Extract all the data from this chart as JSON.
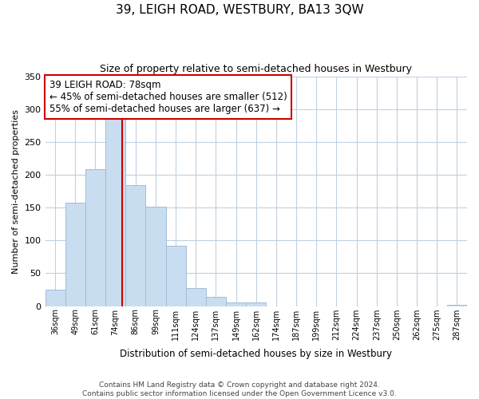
{
  "title": "39, LEIGH ROAD, WESTBURY, BA13 3QW",
  "subtitle": "Size of property relative to semi-detached houses in Westbury",
  "bar_values": [
    25,
    157,
    209,
    287,
    184,
    152,
    92,
    28,
    14,
    5,
    5,
    0,
    0,
    0,
    0,
    0,
    0,
    0,
    0,
    0,
    2
  ],
  "bin_labels": [
    "36sqm",
    "49sqm",
    "61sqm",
    "74sqm",
    "86sqm",
    "99sqm",
    "111sqm",
    "124sqm",
    "137sqm",
    "149sqm",
    "162sqm",
    "174sqm",
    "187sqm",
    "199sqm",
    "212sqm",
    "224sqm",
    "237sqm",
    "250sqm",
    "262sqm",
    "275sqm",
    "287sqm"
  ],
  "bar_color": "#c9ddf0",
  "bar_edge_color": "#a0bcd8",
  "ref_line_value": 3.7,
  "ref_line_color": "#cc0000",
  "annotation_title": "39 LEIGH ROAD: 78sqm",
  "annotation_line2": "← 45% of semi-detached houses are smaller (512)",
  "annotation_line3": "55% of semi-detached houses are larger (637) →",
  "annotation_fontsize": 8.5,
  "ylabel": "Number of semi-detached properties",
  "xlabel": "Distribution of semi-detached houses by size in Westbury",
  "ylim": [
    0,
    350
  ],
  "yticks": [
    0,
    50,
    100,
    150,
    200,
    250,
    300,
    350
  ],
  "footer_line1": "Contains HM Land Registry data © Crown copyright and database right 2024.",
  "footer_line2": "Contains public sector information licensed under the Open Government Licence v3.0.",
  "background_color": "#ffffff",
  "grid_color": "#c0d0e0",
  "title_fontsize": 11,
  "subtitle_fontsize": 9,
  "xlabel_fontsize": 8.5,
  "ylabel_fontsize": 8
}
